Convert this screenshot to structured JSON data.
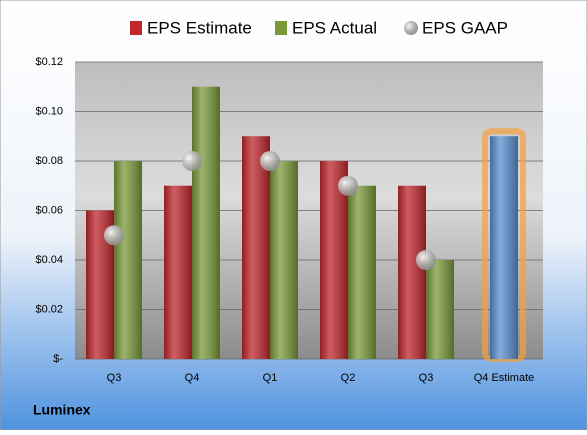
{
  "chart_data": {
    "type": "bar",
    "categories": [
      "Q3",
      "Q4",
      "Q1",
      "Q2",
      "Q3",
      "Q4 Estimate"
    ],
    "series": [
      {
        "name": "EPS Estimate",
        "color": "#c0272d",
        "values": [
          0.06,
          0.07,
          0.09,
          0.08,
          0.07,
          0.09
        ],
        "colors": [
          "#c0272d",
          "#c0272d",
          "#c0272d",
          "#c0272d",
          "#c0272d",
          "#5b8fd0"
        ]
      },
      {
        "name": "EPS Actual",
        "color": "#7a9a3a",
        "values": [
          0.08,
          0.11,
          0.08,
          0.07,
          0.04,
          null
        ]
      },
      {
        "name": "EPS GAAP",
        "color": "#a8a8a8",
        "values": [
          0.05,
          0.08,
          0.08,
          0.07,
          0.04,
          null
        ]
      }
    ],
    "ylim": [
      0,
      0.12
    ],
    "yticks": [
      {
        "value": 0,
        "label": "$-"
      },
      {
        "value": 0.02,
        "label": "$0.02"
      },
      {
        "value": 0.04,
        "label": "$0.04"
      },
      {
        "value": 0.06,
        "label": "$0.06"
      },
      {
        "value": 0.08,
        "label": "$0.08"
      },
      {
        "value": 0.1,
        "label": "$0.10"
      },
      {
        "value": 0.12,
        "label": "$0.12"
      }
    ],
    "grid": true,
    "legend": "top",
    "footer": "Luminex"
  }
}
